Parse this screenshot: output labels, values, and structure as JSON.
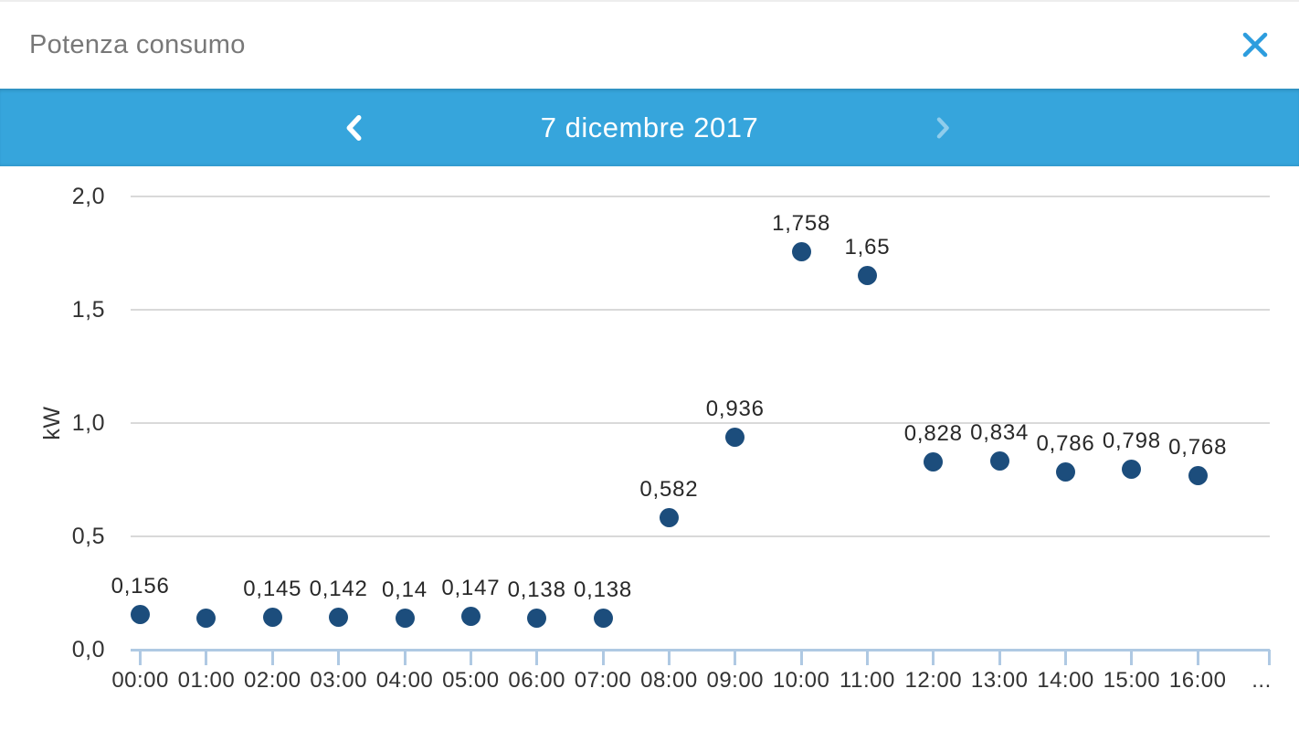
{
  "header": {
    "title": "Potenza consumo"
  },
  "date_nav": {
    "date": "7 dicembre 2017"
  },
  "colors": {
    "bar_blue": "#36a5dc",
    "accent_blue": "#2d9dde",
    "dot_navy": "#1c4d7c",
    "grid_gray": "#d9d9d9",
    "axis_blue": "#afc9e3",
    "title_gray": "#787878",
    "text_dark": "#333333",
    "chevron_muted": "#8fcdec"
  },
  "chart_data": {
    "type": "scatter",
    "title": "Potenza consumo",
    "ylabel": "kW",
    "xlabel": "",
    "grid": true,
    "ylim": [
      0,
      2.0
    ],
    "ytick_labels": [
      "2,0",
      "1,5",
      "1,0",
      "0,5",
      "0,0"
    ],
    "ytick_values": [
      2.0,
      1.5,
      1.0,
      0.5,
      0.0
    ],
    "x": [
      "00:00",
      "01:00",
      "02:00",
      "03:00",
      "04:00",
      "05:00",
      "06:00",
      "07:00",
      "08:00",
      "09:00",
      "10:00",
      "11:00",
      "12:00",
      "13:00",
      "14:00",
      "15:00",
      "16:00"
    ],
    "values": [
      0.156,
      0.14,
      0.145,
      0.142,
      0.14,
      0.147,
      0.138,
      0.138,
      0.582,
      0.936,
      1.758,
      1.65,
      0.828,
      0.834,
      0.786,
      0.798,
      0.768
    ],
    "point_labels": [
      "0,156",
      "",
      "0,145",
      "0,142",
      "0,14",
      "0,147",
      "0,138",
      "0,138",
      "0,582",
      "0,936",
      "1,758",
      "1,65",
      "0,828",
      "0,834",
      "0,786",
      "0,798",
      "0,768"
    ],
    "x_overflow_label": "..."
  }
}
